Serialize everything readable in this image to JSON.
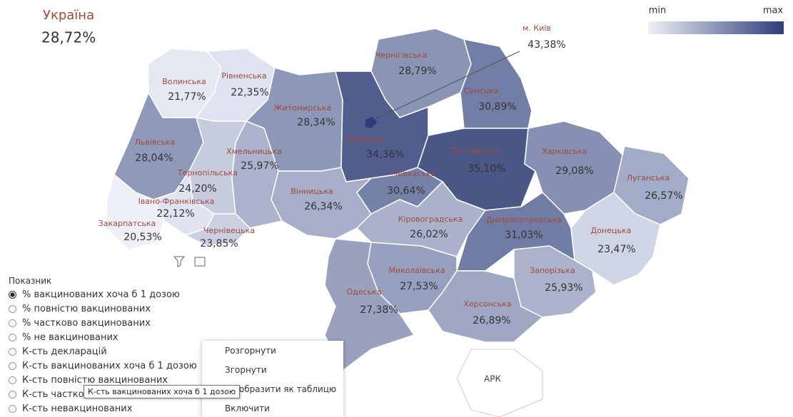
{
  "header": {
    "title": "Україна",
    "value": "28,72%"
  },
  "legend": {
    "min": "min",
    "max": "max",
    "min_color": "#eef0f7",
    "max_color": "#2d3d7a"
  },
  "regions": [
    {
      "name": "Волинська",
      "value": "21,77%",
      "color": "#e4e8f3"
    },
    {
      "name": "Рівненська",
      "value": "22,35%",
      "color": "#dfe3f0"
    },
    {
      "name": "Житомирська",
      "value": "28,34%",
      "color": "#8d97b8"
    },
    {
      "name": "Чернігівська",
      "value": "28,79%",
      "color": "#8a94b5"
    },
    {
      "name": "Сумська",
      "value": "30,89%",
      "color": "#737ea6"
    },
    {
      "name": "Київська",
      "value": "34,36%",
      "color": "#515d8c"
    },
    {
      "name": "Полтавська",
      "value": "35,10%",
      "color": "#4a5686"
    },
    {
      "name": "Харківська",
      "value": "29,08%",
      "color": "#8790b2"
    },
    {
      "name": "Луганська",
      "value": "26,57%",
      "color": "#a2abc7"
    },
    {
      "name": "Львівська",
      "value": "28,04%",
      "color": "#9099ba"
    },
    {
      "name": "Тернопільська",
      "value": "24,20%",
      "color": "#c6cbde"
    },
    {
      "name": "Хмельницька",
      "value": "25,97%",
      "color": "#abb3cc"
    },
    {
      "name": "Вінницька",
      "value": "26,34%",
      "color": "#a6aec9"
    },
    {
      "name": "Черкаська",
      "value": "30,64%",
      "color": "#7681a8"
    },
    {
      "name": "Івано-Франківська",
      "value": "22,12%",
      "color": "#e0e4f1"
    },
    {
      "name": "Закарпатська",
      "value": "20,53%",
      "color": "#eef0f7"
    },
    {
      "name": "Чернівецька",
      "value": "23,85%",
      "color": "#cbd0e1"
    },
    {
      "name": "Кіровоградська",
      "value": "26,02%",
      "color": "#aab2cb"
    },
    {
      "name": "Дніпропетровська",
      "value": "31,03%",
      "color": "#717ca4"
    },
    {
      "name": "Донецька",
      "value": "23,47%",
      "color": "#d0d5e5"
    },
    {
      "name": "Миколаївська",
      "value": "27,53%",
      "color": "#979fbe"
    },
    {
      "name": "Запорізька",
      "value": "25,93%",
      "color": "#abb3cc"
    },
    {
      "name": "Одеська",
      "value": "27,38%",
      "color": "#99a1bf"
    },
    {
      "name": "Херсонська",
      "value": "26,89%",
      "color": "#9fa7c4"
    }
  ],
  "kyiv": {
    "name": "м. Київ",
    "value": "43,38%"
  },
  "crimea": "АРК",
  "panel": {
    "title": "Показник",
    "options": [
      "% вакцинованих хоча б 1 дозою",
      "% повністю вакцинованих",
      "% частково вакцинованих",
      "% не вакцинованих",
      "К-сть декларацій",
      "К-сть вакцинованих хоча б 1 дозою",
      "К-сть повністю вакцинованих",
      "К-сть частково вакцинованих",
      "К-сть невакцинованих"
    ],
    "selected": 0
  },
  "context_menu": [
    "Розгорнути",
    "Згорнути",
    "Відобразити як таблицю",
    "Включити"
  ],
  "tooltip": "К-сть вакцинованих хоча б 1 дозою"
}
